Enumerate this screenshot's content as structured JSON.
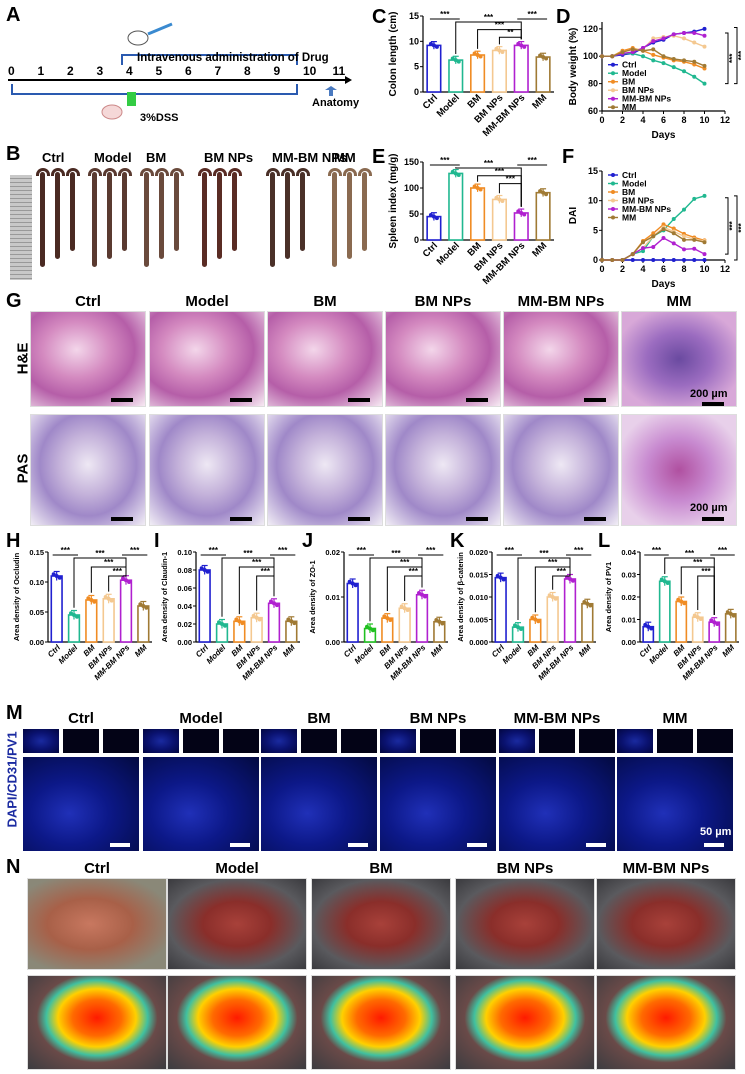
{
  "panel_labels": {
    "A": "A",
    "B": "B",
    "C": "C",
    "D": "D",
    "E": "E",
    "F": "F",
    "G": "G",
    "H": "H",
    "I": "I",
    "J": "J",
    "K": "K",
    "L": "L",
    "M": "M",
    "N": "N"
  },
  "timeline": {
    "days": [
      "0",
      "1",
      "2",
      "3",
      "4",
      "5",
      "6",
      "7",
      "8",
      "9",
      "10",
      "11"
    ],
    "drug_label": "Intravenous administration of Drug",
    "dss_label": "3%DSS",
    "anatomy_label": "Anatomy"
  },
  "groups": [
    "Ctrl",
    "Model",
    "BM",
    "BM NPs",
    "MM-BM NPs",
    "MM"
  ],
  "colors": {
    "Ctrl": "#2020d0",
    "Model": "#20b890",
    "BM": "#f08c24",
    "BM NPs": "#f4c890",
    "MM-BM NPs": "#b020d0",
    "MM": "#a07a34"
  },
  "panel_g": {
    "row_labels": [
      "H&E",
      "PAS"
    ],
    "scale_label": "200 µm"
  },
  "panel_m": {
    "row_label": "DAPI/CD31/PV1",
    "scale_label": "50 µm"
  },
  "panel_n": {
    "groups": [
      "Ctrl",
      "Model",
      "BM",
      "BM NPs",
      "MM-BM NPs"
    ]
  },
  "chart_data": [
    {
      "id": "C",
      "type": "bar",
      "ylabel": "Colon length (cm)",
      "ylim": [
        0,
        15
      ],
      "ticks": [
        0,
        5,
        10,
        15
      ],
      "categories": [
        "Ctrl",
        "Model",
        "BM",
        "BM NPs",
        "MM-BM NPs",
        "MM"
      ],
      "values": [
        9.2,
        6.3,
        7.3,
        8.2,
        9.2,
        6.9
      ],
      "sig": [
        {
          "a": 0,
          "b": 1,
          "label": "***"
        },
        {
          "a": 1,
          "b": 4,
          "label": "***"
        },
        {
          "a": 2,
          "b": 4,
          "label": "***"
        },
        {
          "a": 3,
          "b": 4,
          "label": "**"
        },
        {
          "a": 4,
          "b": 5,
          "label": "***"
        }
      ]
    },
    {
      "id": "E",
      "type": "bar",
      "ylabel": "Spleen index (mg/g)",
      "ylim": [
        0,
        150
      ],
      "ticks": [
        0,
        50,
        100,
        150
      ],
      "categories": [
        "Ctrl",
        "Model",
        "BM",
        "BM NPs",
        "MM-BM NPs",
        "MM"
      ],
      "values": [
        45,
        128,
        100,
        78,
        52,
        91
      ],
      "sig": [
        {
          "a": 0,
          "b": 1,
          "label": "***"
        },
        {
          "a": 1,
          "b": 4,
          "label": "***"
        },
        {
          "a": 2,
          "b": 4,
          "label": "***"
        },
        {
          "a": 3,
          "b": 4,
          "label": "***"
        },
        {
          "a": 4,
          "b": 5,
          "label": "***"
        }
      ]
    },
    {
      "id": "D",
      "type": "line",
      "xlabel": "Days",
      "ylabel": "Body weight (%)",
      "xlim": [
        0,
        12
      ],
      "xticks": [
        0,
        2,
        4,
        6,
        8,
        10,
        12
      ],
      "ylim": [
        60,
        125
      ],
      "ticks": [
        60,
        80,
        100,
        120
      ],
      "legend": "bottom-left",
      "sig_labels": [
        "***",
        "***"
      ],
      "x": [
        0,
        1,
        2,
        3,
        4,
        5,
        6,
        7,
        8,
        9,
        10
      ],
      "series": [
        {
          "name": "Ctrl",
          "values": [
            100,
            100,
            101,
            102,
            106,
            110,
            112,
            116,
            117,
            118,
            120
          ]
        },
        {
          "name": "Model",
          "values": [
            100,
            100,
            102,
            102,
            100,
            97,
            95,
            92,
            89,
            85,
            80
          ]
        },
        {
          "name": "BM",
          "values": [
            100,
            100,
            104,
            106,
            104,
            101,
            99,
            97,
            96,
            94,
            91
          ]
        },
        {
          "name": "BM NPs",
          "values": [
            100,
            100,
            103,
            105,
            105,
            113,
            114,
            115,
            113,
            110,
            107
          ]
        },
        {
          "name": "MM-BM NPs",
          "values": [
            100,
            100,
            102,
            103,
            106,
            111,
            113,
            116,
            117,
            117,
            115
          ]
        },
        {
          "name": "MM",
          "values": [
            100,
            100,
            103,
            105,
            104,
            105,
            100,
            98,
            97,
            96,
            93
          ]
        }
      ]
    },
    {
      "id": "F",
      "type": "line",
      "xlabel": "Days",
      "ylabel": "DAI",
      "xlim": [
        0,
        12
      ],
      "xticks": [
        0,
        2,
        4,
        6,
        8,
        10,
        12
      ],
      "ylim": [
        0,
        15
      ],
      "ticks": [
        0,
        5,
        10,
        15
      ],
      "legend": "top-left",
      "sig_labels": [
        "***",
        "***"
      ],
      "x": [
        0,
        1,
        2,
        3,
        4,
        5,
        6,
        7,
        8,
        9,
        10
      ],
      "series": [
        {
          "name": "Ctrl",
          "values": [
            0,
            0,
            0,
            0,
            0,
            0,
            0,
            0,
            0,
            0,
            0
          ]
        },
        {
          "name": "Model",
          "values": [
            0,
            0,
            0,
            1,
            1.5,
            4,
            5,
            6.9,
            8.5,
            10.3,
            10.8
          ]
        },
        {
          "name": "BM",
          "values": [
            0,
            0,
            0,
            1,
            3.2,
            4.5,
            6,
            5.3,
            4.4,
            3.8,
            3.3
          ]
        },
        {
          "name": "BM NPs",
          "values": [
            0,
            0,
            0,
            1,
            2,
            4,
            5.5,
            4.8,
            4,
            3.5,
            3.2
          ]
        },
        {
          "name": "MM-BM NPs",
          "values": [
            0,
            0,
            0,
            1,
            2,
            2.2,
            3.7,
            2.8,
            1.8,
            1.9,
            1
          ]
        },
        {
          "name": "MM",
          "values": [
            0,
            0,
            0,
            1,
            3,
            4,
            5.2,
            4.5,
            3.4,
            3.4,
            3
          ]
        }
      ]
    },
    {
      "id": "H",
      "type": "bar",
      "ylabel": "Area density of Occludin",
      "ylim": [
        0,
        0.15
      ],
      "ticks": [
        "0.00",
        "0.05",
        "0.10",
        "0.15"
      ],
      "categories": [
        "Ctrl",
        "Model",
        "BM",
        "BM NPs",
        "MM-BM NPs",
        "MM"
      ],
      "values": [
        0.11,
        0.045,
        0.07,
        0.072,
        0.103,
        0.06
      ],
      "sig": [
        {
          "a": 0,
          "b": 1,
          "label": "***"
        },
        {
          "a": 1,
          "b": 4,
          "label": "***"
        },
        {
          "a": 2,
          "b": 4,
          "label": "***"
        },
        {
          "a": 3,
          "b": 4,
          "label": "***"
        },
        {
          "a": 4,
          "b": 5,
          "label": "***"
        }
      ]
    },
    {
      "id": "I",
      "type": "bar",
      "ylabel": "Area density of Claudin-1",
      "ylim": [
        0,
        0.1
      ],
      "ticks": [
        "0.00",
        "0.02",
        "0.04",
        "0.06",
        "0.08",
        "0.10"
      ],
      "categories": [
        "Ctrl",
        "Model",
        "BM",
        "BM NPs",
        "MM-BM NPs",
        "MM"
      ],
      "values": [
        0.08,
        0.02,
        0.023,
        0.027,
        0.043,
        0.023
      ],
      "sig": [
        {
          "a": 0,
          "b": 1,
          "label": "***"
        },
        {
          "a": 1,
          "b": 4,
          "label": "***"
        },
        {
          "a": 2,
          "b": 4,
          "label": "***"
        },
        {
          "a": 3,
          "b": 4,
          "label": "***"
        },
        {
          "a": 4,
          "b": 5,
          "label": "***"
        }
      ]
    },
    {
      "id": "J",
      "type": "bar",
      "ylabel": "Area density of ZO-1",
      "ylim": [
        0,
        0.02
      ],
      "ticks": [
        "0.00",
        "0.01",
        "0.02"
      ],
      "categories": [
        "Ctrl",
        "Model",
        "BM",
        "BM NPs",
        "MM-BM NPs",
        "MM"
      ],
      "values": [
        0.013,
        0.003,
        0.0053,
        0.0075,
        0.0105,
        0.0045
      ],
      "model_color": "#20c020",
      "sig": [
        {
          "a": 0,
          "b": 1,
          "label": "***"
        },
        {
          "a": 1,
          "b": 4,
          "label": "***"
        },
        {
          "a": 2,
          "b": 4,
          "label": "***"
        },
        {
          "a": 3,
          "b": 4,
          "label": "***"
        },
        {
          "a": 4,
          "b": 5,
          "label": "***"
        }
      ]
    },
    {
      "id": "K",
      "type": "bar",
      "ylabel": "Area density of β-catenin",
      "ylim": [
        0,
        0.02
      ],
      "ticks": [
        "0.000",
        "0.005",
        "0.010",
        "0.015",
        "0.020"
      ],
      "categories": [
        "Ctrl",
        "Model",
        "BM",
        "BM NPs",
        "MM-BM NPs",
        "MM"
      ],
      "values": [
        0.0143,
        0.0033,
        0.005,
        0.01,
        0.014,
        0.0085
      ],
      "sig": [
        {
          "a": 0,
          "b": 1,
          "label": "***"
        },
        {
          "a": 1,
          "b": 4,
          "label": "***"
        },
        {
          "a": 2,
          "b": 4,
          "label": "***"
        },
        {
          "a": 3,
          "b": 4,
          "label": "***"
        },
        {
          "a": 4,
          "b": 5,
          "label": "***"
        }
      ]
    },
    {
      "id": "L",
      "type": "bar",
      "ylabel": "Area density of PV1",
      "ylim": [
        0,
        0.04
      ],
      "ticks": [
        "0.00",
        "0.01",
        "0.02",
        "0.03",
        "0.04"
      ],
      "categories": [
        "Ctrl",
        "Model",
        "BM",
        "BM NPs",
        "MM-BM NPs",
        "MM"
      ],
      "values": [
        0.0068,
        0.027,
        0.018,
        0.011,
        0.0088,
        0.0125
      ],
      "sig": [
        {
          "a": 0,
          "b": 1,
          "label": "***"
        },
        {
          "a": 1,
          "b": 4,
          "label": "***"
        },
        {
          "a": 2,
          "b": 4,
          "label": "***"
        },
        {
          "a": 3,
          "b": 4,
          "label": "***"
        },
        {
          "a": 4,
          "b": 5,
          "label": "***"
        }
      ]
    }
  ]
}
